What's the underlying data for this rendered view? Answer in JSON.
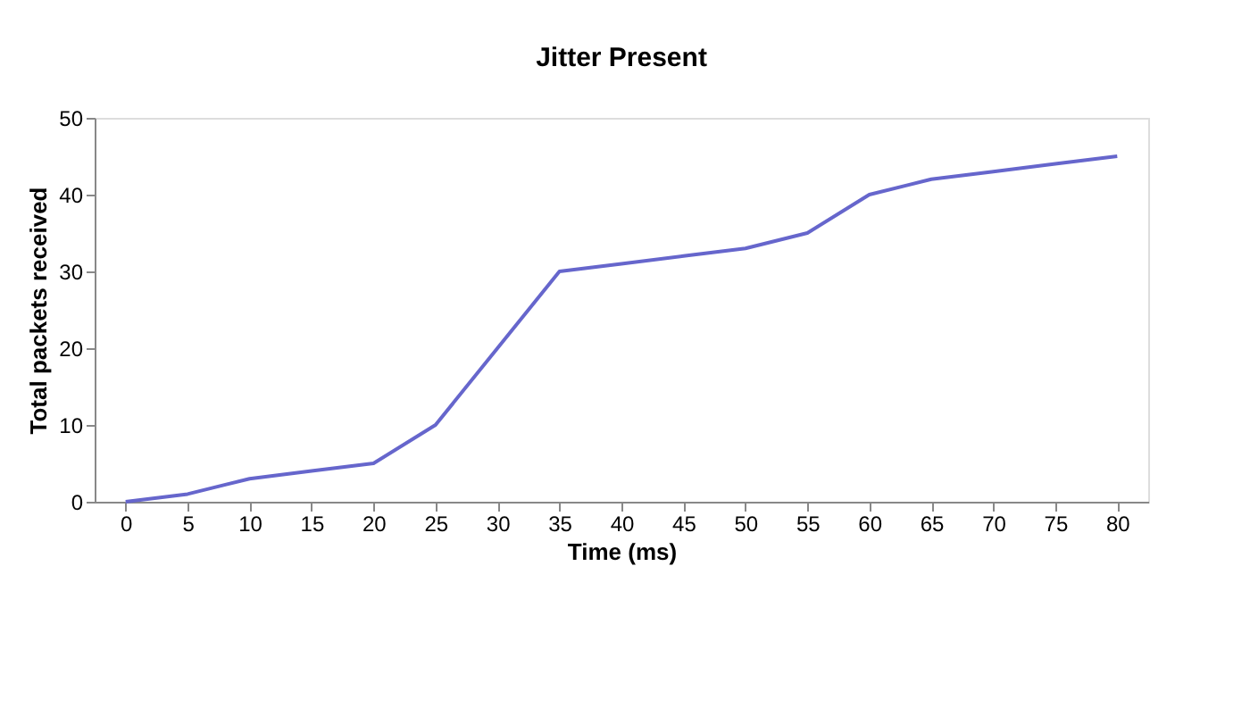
{
  "chart_data": {
    "type": "line",
    "title": "Jitter Present",
    "xlabel": "Time (ms)",
    "ylabel": "Total packets received",
    "categories": [
      "0",
      "5",
      "10",
      "15",
      "20",
      "25",
      "30",
      "35",
      "40",
      "45",
      "50",
      "55",
      "60",
      "65",
      "70",
      "75",
      "80"
    ],
    "series": [
      {
        "color": "#6666cc",
        "values": [
          0,
          1,
          3,
          4,
          5,
          10,
          20,
          30,
          31,
          32,
          33,
          35,
          40,
          42,
          43,
          44,
          45
        ]
      }
    ],
    "ylim": [
      0,
      50
    ],
    "yticks": [
      0,
      10,
      20,
      30,
      40,
      50
    ],
    "grid": false,
    "legend": false,
    "marker": "none",
    "line_style": "solid"
  }
}
